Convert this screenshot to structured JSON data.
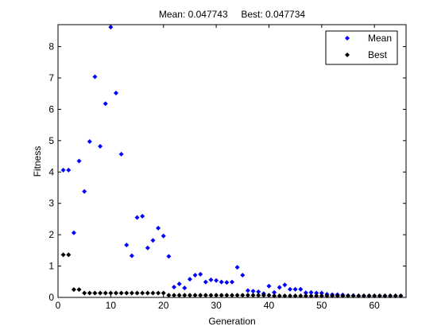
{
  "figure_title": "Mean: 0.047743     Best: 0.047734",
  "chart_data": {
    "type": "scatter",
    "title": "Mean: 0.047743     Best: 0.047734",
    "xlabel": "Generation",
    "ylabel": "Fitness",
    "xlim": [
      0,
      66
    ],
    "ylim": [
      0,
      8.7
    ],
    "xticks": [
      0,
      10,
      20,
      30,
      40,
      50,
      60
    ],
    "yticks": [
      0,
      1,
      2,
      3,
      4,
      5,
      6,
      7,
      8
    ],
    "grid": false,
    "legend_position": "top-right",
    "series": [
      {
        "name": "Mean",
        "color": "#0000ff",
        "marker": "diamond",
        "x": [
          1,
          2,
          3,
          4,
          5,
          6,
          7,
          8,
          9,
          10,
          11,
          12,
          13,
          14,
          15,
          16,
          17,
          18,
          19,
          20,
          21,
          22,
          23,
          24,
          25,
          26,
          27,
          28,
          29,
          30,
          31,
          32,
          33,
          34,
          35,
          36,
          37,
          38,
          39,
          40,
          41,
          42,
          43,
          44,
          45,
          46,
          47,
          48,
          49,
          50,
          51,
          52,
          53,
          54,
          55,
          56,
          57,
          58,
          59,
          60,
          61,
          62,
          63,
          64,
          65
        ],
        "y": [
          4.06,
          4.06,
          2.06,
          4.35,
          3.38,
          4.97,
          7.04,
          4.82,
          6.18,
          8.62,
          6.52,
          4.57,
          1.67,
          1.33,
          2.55,
          2.59,
          1.58,
          1.82,
          2.21,
          1.96,
          1.31,
          0.33,
          0.43,
          0.3,
          0.58,
          0.71,
          0.74,
          0.49,
          0.56,
          0.54,
          0.49,
          0.48,
          0.49,
          0.96,
          0.71,
          0.22,
          0.2,
          0.18,
          0.12,
          0.36,
          0.16,
          0.32,
          0.4,
          0.26,
          0.26,
          0.26,
          0.15,
          0.16,
          0.14,
          0.14,
          0.1,
          0.09,
          0.09,
          0.08,
          0.06,
          0.06,
          0.05,
          0.05,
          0.05,
          0.05,
          0.05,
          0.05,
          0.05,
          0.05,
          0.05
        ]
      },
      {
        "name": "Best",
        "color": "#000000",
        "marker": "diamond",
        "x": [
          1,
          2,
          3,
          4,
          5,
          6,
          7,
          8,
          9,
          10,
          11,
          12,
          13,
          14,
          15,
          16,
          17,
          18,
          19,
          20,
          21,
          22,
          23,
          24,
          25,
          26,
          27,
          28,
          29,
          30,
          31,
          32,
          33,
          34,
          35,
          36,
          37,
          38,
          39,
          40,
          41,
          42,
          43,
          44,
          45,
          46,
          47,
          48,
          49,
          50,
          51,
          52,
          53,
          54,
          55,
          56,
          57,
          58,
          59,
          60,
          61,
          62,
          63,
          64,
          65
        ],
        "y": [
          1.36,
          1.36,
          0.25,
          0.25,
          0.14,
          0.14,
          0.14,
          0.14,
          0.14,
          0.14,
          0.14,
          0.14,
          0.14,
          0.14,
          0.14,
          0.14,
          0.14,
          0.14,
          0.14,
          0.14,
          0.07,
          0.07,
          0.07,
          0.07,
          0.07,
          0.07,
          0.07,
          0.07,
          0.07,
          0.07,
          0.07,
          0.07,
          0.07,
          0.07,
          0.07,
          0.07,
          0.07,
          0.07,
          0.07,
          0.07,
          0.05,
          0.05,
          0.05,
          0.05,
          0.05,
          0.05,
          0.05,
          0.05,
          0.05,
          0.05,
          0.05,
          0.05,
          0.05,
          0.05,
          0.05,
          0.05,
          0.05,
          0.05,
          0.05,
          0.05,
          0.05,
          0.05,
          0.05,
          0.05,
          0.05
        ]
      }
    ]
  }
}
